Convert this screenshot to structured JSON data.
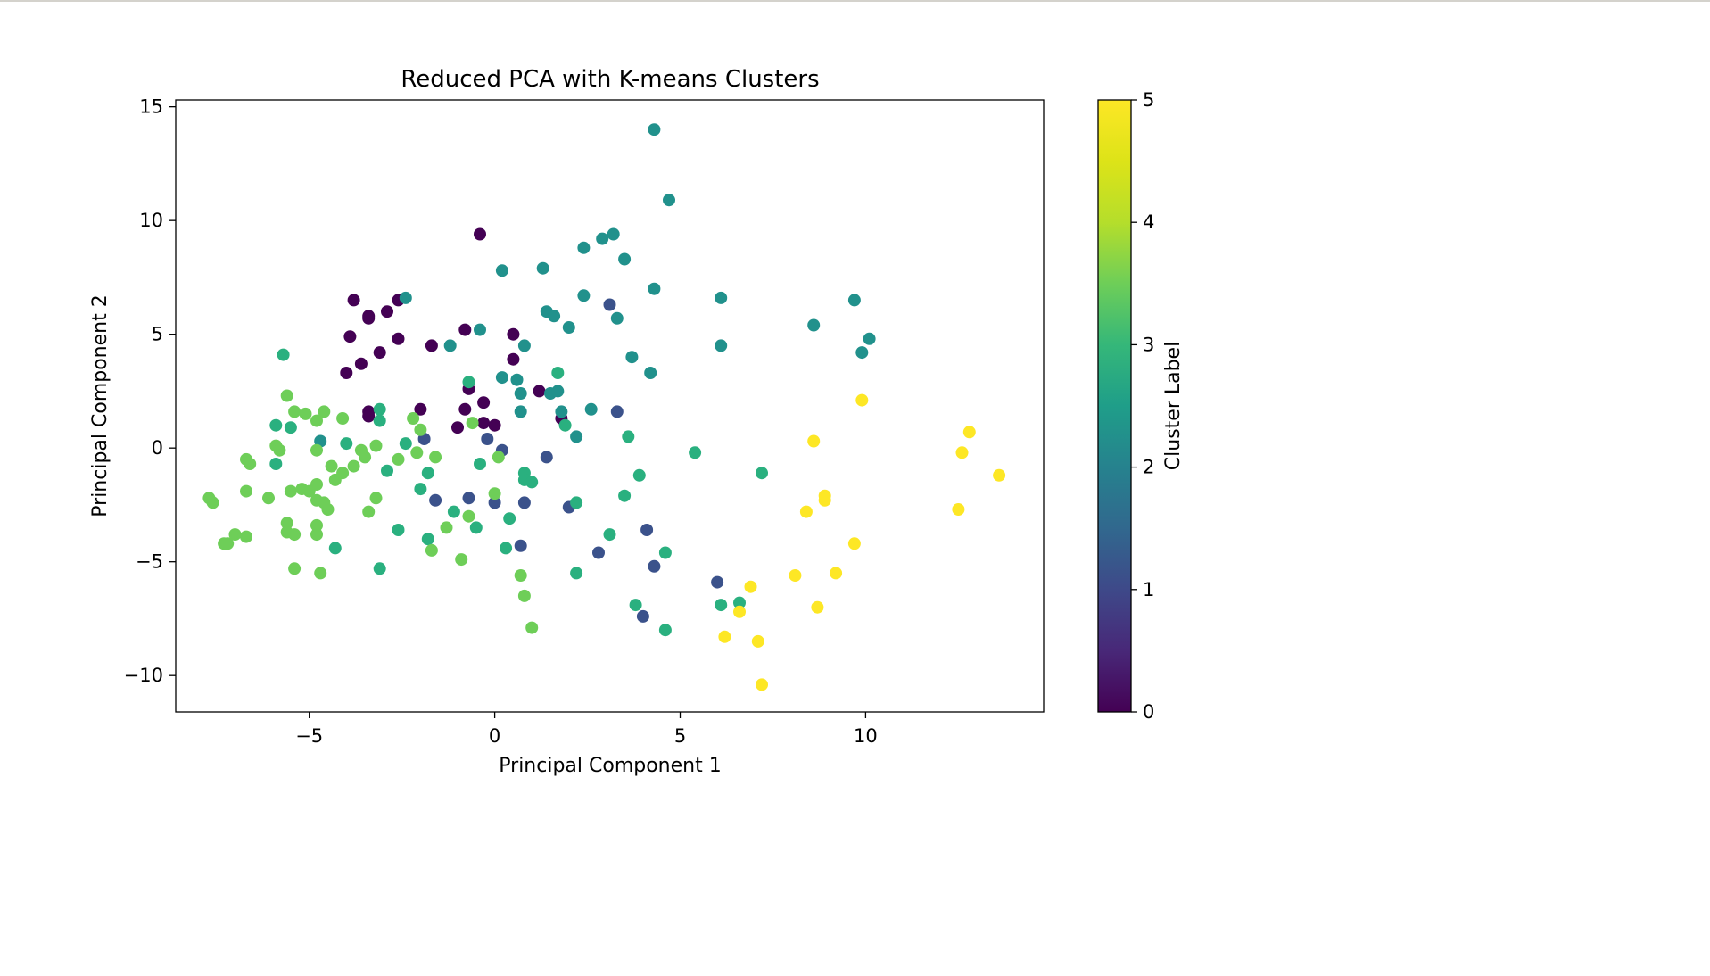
{
  "chart_data": {
    "type": "scatter",
    "title": "Reduced PCA with K-means Clusters",
    "xlabel": "Principal Component 1",
    "ylabel": "Principal Component 2",
    "xlim": [
      -8.6,
      14.8
    ],
    "ylim": [
      -11.6,
      15.3
    ],
    "xticks": [
      -5,
      0,
      5,
      10
    ],
    "yticks": [
      -10,
      -5,
      0,
      5,
      10,
      15
    ],
    "colorbar": {
      "label": "Cluster Label",
      "ticks": [
        0,
        1,
        2,
        3,
        4,
        5
      ],
      "range": [
        0,
        5
      ],
      "colormap": "viridis"
    },
    "grid": false,
    "colors": {
      "0": "#440154",
      "1": "#3b528b",
      "2": "#21918c",
      "3": "#2ab07f",
      "4": "#6ece58",
      "5": "#fde725"
    },
    "points": [
      {
        "x": -0.4,
        "y": 9.4,
        "c": 0
      },
      {
        "x": -3.8,
        "y": 6.5,
        "c": 0
      },
      {
        "x": -2.9,
        "y": 6.0,
        "c": 0
      },
      {
        "x": -3.4,
        "y": 5.8,
        "c": 0
      },
      {
        "x": -3.4,
        "y": 5.7,
        "c": 0
      },
      {
        "x": -2.6,
        "y": 6.5,
        "c": 0
      },
      {
        "x": -3.9,
        "y": 4.9,
        "c": 0
      },
      {
        "x": -2.6,
        "y": 4.8,
        "c": 0
      },
      {
        "x": -1.7,
        "y": 4.5,
        "c": 0
      },
      {
        "x": -0.8,
        "y": 5.2,
        "c": 0
      },
      {
        "x": 0.5,
        "y": 5.0,
        "c": 0
      },
      {
        "x": -3.1,
        "y": 4.2,
        "c": 0
      },
      {
        "x": -3.6,
        "y": 3.7,
        "c": 0
      },
      {
        "x": -4.0,
        "y": 3.3,
        "c": 0
      },
      {
        "x": 0.5,
        "y": 3.9,
        "c": 0
      },
      {
        "x": -0.7,
        "y": 2.6,
        "c": 0
      },
      {
        "x": -0.3,
        "y": 2.0,
        "c": 0
      },
      {
        "x": 1.2,
        "y": 2.5,
        "c": 0
      },
      {
        "x": -0.8,
        "y": 1.7,
        "c": 0
      },
      {
        "x": -2.0,
        "y": 1.7,
        "c": 0
      },
      {
        "x": -3.4,
        "y": 1.6,
        "c": 0
      },
      {
        "x": -3.4,
        "y": 1.4,
        "c": 0
      },
      {
        "x": 1.8,
        "y": 1.3,
        "c": 0
      },
      {
        "x": -0.3,
        "y": 1.1,
        "c": 0
      },
      {
        "x": 0.0,
        "y": 1.0,
        "c": 0
      },
      {
        "x": -1.0,
        "y": 0.9,
        "c": 0
      },
      {
        "x": 3.1,
        "y": 6.3,
        "c": 1
      },
      {
        "x": 3.3,
        "y": 1.6,
        "c": 1
      },
      {
        "x": -1.9,
        "y": 0.4,
        "c": 1
      },
      {
        "x": -0.2,
        "y": 0.4,
        "c": 1
      },
      {
        "x": 0.2,
        "y": -0.1,
        "c": 1
      },
      {
        "x": 1.4,
        "y": -0.4,
        "c": 1
      },
      {
        "x": -1.6,
        "y": -2.3,
        "c": 1
      },
      {
        "x": -0.7,
        "y": -2.2,
        "c": 1
      },
      {
        "x": 0.0,
        "y": -2.4,
        "c": 1
      },
      {
        "x": 0.8,
        "y": -2.4,
        "c": 1
      },
      {
        "x": 2.0,
        "y": -2.6,
        "c": 1
      },
      {
        "x": 4.1,
        "y": -3.6,
        "c": 1
      },
      {
        "x": 0.7,
        "y": -4.3,
        "c": 1
      },
      {
        "x": 2.8,
        "y": -4.6,
        "c": 1
      },
      {
        "x": 4.3,
        "y": -5.2,
        "c": 1
      },
      {
        "x": 6.0,
        "y": -5.9,
        "c": 1
      },
      {
        "x": 4.0,
        "y": -7.4,
        "c": 1
      },
      {
        "x": 4.3,
        "y": 14.0,
        "c": 2
      },
      {
        "x": 4.7,
        "y": 10.9,
        "c": 2
      },
      {
        "x": 3.2,
        "y": 9.4,
        "c": 2
      },
      {
        "x": 2.9,
        "y": 9.2,
        "c": 2
      },
      {
        "x": 2.4,
        "y": 8.8,
        "c": 2
      },
      {
        "x": 3.5,
        "y": 8.3,
        "c": 2
      },
      {
        "x": 0.2,
        "y": 7.8,
        "c": 2
      },
      {
        "x": 1.3,
        "y": 7.9,
        "c": 2
      },
      {
        "x": 4.3,
        "y": 7.0,
        "c": 2
      },
      {
        "x": 2.4,
        "y": 6.7,
        "c": 2
      },
      {
        "x": 6.1,
        "y": 6.6,
        "c": 2
      },
      {
        "x": 9.7,
        "y": 6.5,
        "c": 2
      },
      {
        "x": -2.4,
        "y": 6.6,
        "c": 2
      },
      {
        "x": 1.4,
        "y": 6.0,
        "c": 2
      },
      {
        "x": 1.6,
        "y": 5.8,
        "c": 2
      },
      {
        "x": 3.3,
        "y": 5.7,
        "c": 2
      },
      {
        "x": 8.6,
        "y": 5.4,
        "c": 2
      },
      {
        "x": 2.0,
        "y": 5.3,
        "c": 2
      },
      {
        "x": -0.4,
        "y": 5.2,
        "c": 2
      },
      {
        "x": 10.1,
        "y": 4.8,
        "c": 2
      },
      {
        "x": -1.2,
        "y": 4.5,
        "c": 2
      },
      {
        "x": 0.8,
        "y": 4.5,
        "c": 2
      },
      {
        "x": 6.1,
        "y": 4.5,
        "c": 2
      },
      {
        "x": 3.7,
        "y": 4.0,
        "c": 2
      },
      {
        "x": 9.9,
        "y": 4.2,
        "c": 2
      },
      {
        "x": 4.2,
        "y": 3.3,
        "c": 2
      },
      {
        "x": 0.2,
        "y": 3.1,
        "c": 2
      },
      {
        "x": 0.6,
        "y": 3.0,
        "c": 2
      },
      {
        "x": 0.7,
        "y": 2.4,
        "c": 2
      },
      {
        "x": 1.5,
        "y": 2.4,
        "c": 2
      },
      {
        "x": 1.7,
        "y": 2.5,
        "c": 2
      },
      {
        "x": 2.6,
        "y": 1.7,
        "c": 2
      },
      {
        "x": 1.8,
        "y": 1.6,
        "c": 2
      },
      {
        "x": 0.7,
        "y": 1.6,
        "c": 2
      },
      {
        "x": 2.2,
        "y": 0.5,
        "c": 2
      },
      {
        "x": -4.7,
        "y": 0.3,
        "c": 2
      },
      {
        "x": -5.7,
        "y": 4.1,
        "c": 3
      },
      {
        "x": 1.7,
        "y": 3.3,
        "c": 3
      },
      {
        "x": -0.7,
        "y": 2.9,
        "c": 3
      },
      {
        "x": -3.1,
        "y": 1.7,
        "c": 3
      },
      {
        "x": -3.1,
        "y": 1.2,
        "c": 3
      },
      {
        "x": -5.9,
        "y": 1.0,
        "c": 3
      },
      {
        "x": -5.5,
        "y": 0.9,
        "c": 3
      },
      {
        "x": 1.9,
        "y": 1.0,
        "c": 3
      },
      {
        "x": 3.6,
        "y": 0.5,
        "c": 3
      },
      {
        "x": -4.0,
        "y": 0.2,
        "c": 3
      },
      {
        "x": -2.4,
        "y": 0.2,
        "c": 3
      },
      {
        "x": 5.4,
        "y": -0.2,
        "c": 3
      },
      {
        "x": -5.9,
        "y": -0.7,
        "c": 3
      },
      {
        "x": -0.4,
        "y": -0.7,
        "c": 3
      },
      {
        "x": 7.2,
        "y": -1.1,
        "c": 3
      },
      {
        "x": -2.9,
        "y": -1.0,
        "c": 3
      },
      {
        "x": -1.8,
        "y": -1.1,
        "c": 3
      },
      {
        "x": 0.8,
        "y": -1.1,
        "c": 3
      },
      {
        "x": 0.8,
        "y": -1.4,
        "c": 3
      },
      {
        "x": 1.0,
        "y": -1.5,
        "c": 3
      },
      {
        "x": 3.9,
        "y": -1.2,
        "c": 3
      },
      {
        "x": -2.0,
        "y": -1.8,
        "c": 3
      },
      {
        "x": 3.5,
        "y": -2.1,
        "c": 3
      },
      {
        "x": 2.2,
        "y": -2.4,
        "c": 3
      },
      {
        "x": -1.1,
        "y": -2.8,
        "c": 3
      },
      {
        "x": 0.4,
        "y": -3.1,
        "c": 3
      },
      {
        "x": -2.6,
        "y": -3.6,
        "c": 3
      },
      {
        "x": -0.5,
        "y": -3.5,
        "c": 3
      },
      {
        "x": 3.1,
        "y": -3.8,
        "c": 3
      },
      {
        "x": -1.8,
        "y": -4.0,
        "c": 3
      },
      {
        "x": -4.3,
        "y": -4.4,
        "c": 3
      },
      {
        "x": 0.3,
        "y": -4.4,
        "c": 3
      },
      {
        "x": 4.6,
        "y": -4.6,
        "c": 3
      },
      {
        "x": -3.1,
        "y": -5.3,
        "c": 3
      },
      {
        "x": 2.2,
        "y": -5.5,
        "c": 3
      },
      {
        "x": 3.8,
        "y": -6.9,
        "c": 3
      },
      {
        "x": 6.1,
        "y": -6.9,
        "c": 3
      },
      {
        "x": 6.6,
        "y": -6.8,
        "c": 3
      },
      {
        "x": 4.6,
        "y": -8.0,
        "c": 3
      },
      {
        "x": -5.6,
        "y": 2.3,
        "c": 4
      },
      {
        "x": -5.4,
        "y": 1.6,
        "c": 4
      },
      {
        "x": -5.1,
        "y": 1.5,
        "c": 4
      },
      {
        "x": -4.8,
        "y": 1.2,
        "c": 4
      },
      {
        "x": -4.6,
        "y": 1.6,
        "c": 4
      },
      {
        "x": -4.1,
        "y": 1.3,
        "c": 4
      },
      {
        "x": -2.2,
        "y": 1.3,
        "c": 4
      },
      {
        "x": -0.6,
        "y": 1.1,
        "c": 4
      },
      {
        "x": -2.0,
        "y": 0.8,
        "c": 4
      },
      {
        "x": -5.9,
        "y": 0.1,
        "c": 4
      },
      {
        "x": -5.8,
        "y": -0.1,
        "c": 4
      },
      {
        "x": -4.8,
        "y": -0.1,
        "c": 4
      },
      {
        "x": -3.6,
        "y": -0.1,
        "c": 4
      },
      {
        "x": -3.2,
        "y": 0.1,
        "c": 4
      },
      {
        "x": -3.5,
        "y": -0.4,
        "c": 4
      },
      {
        "x": -2.1,
        "y": -0.2,
        "c": 4
      },
      {
        "x": -2.6,
        "y": -0.5,
        "c": 4
      },
      {
        "x": -1.6,
        "y": -0.4,
        "c": 4
      },
      {
        "x": 0.1,
        "y": -0.4,
        "c": 4
      },
      {
        "x": -6.7,
        "y": -0.5,
        "c": 4
      },
      {
        "x": -6.6,
        "y": -0.7,
        "c": 4
      },
      {
        "x": -4.4,
        "y": -0.8,
        "c": 4
      },
      {
        "x": -3.8,
        "y": -0.8,
        "c": 4
      },
      {
        "x": -4.1,
        "y": -1.1,
        "c": 4
      },
      {
        "x": -4.3,
        "y": -1.4,
        "c": 4
      },
      {
        "x": -4.8,
        "y": -1.6,
        "c": 4
      },
      {
        "x": -5.2,
        "y": -1.8,
        "c": 4
      },
      {
        "x": -5.0,
        "y": -1.9,
        "c": 4
      },
      {
        "x": -5.5,
        "y": -1.9,
        "c": 4
      },
      {
        "x": -6.7,
        "y": -1.9,
        "c": 4
      },
      {
        "x": -6.1,
        "y": -2.2,
        "c": 4
      },
      {
        "x": -7.7,
        "y": -2.2,
        "c": 4
      },
      {
        "x": -7.6,
        "y": -2.4,
        "c": 4
      },
      {
        "x": -4.8,
        "y": -2.3,
        "c": 4
      },
      {
        "x": -4.6,
        "y": -2.4,
        "c": 4
      },
      {
        "x": -4.5,
        "y": -2.7,
        "c": 4
      },
      {
        "x": -3.2,
        "y": -2.2,
        "c": 4
      },
      {
        "x": -3.4,
        "y": -2.8,
        "c": 4
      },
      {
        "x": 0.0,
        "y": -2.0,
        "c": 4
      },
      {
        "x": -0.7,
        "y": -3.0,
        "c": 4
      },
      {
        "x": -5.6,
        "y": -3.3,
        "c": 4
      },
      {
        "x": -4.8,
        "y": -3.4,
        "c": 4
      },
      {
        "x": -1.3,
        "y": -3.5,
        "c": 4
      },
      {
        "x": -5.6,
        "y": -3.7,
        "c": 4
      },
      {
        "x": -5.4,
        "y": -3.8,
        "c": 4
      },
      {
        "x": -4.8,
        "y": -3.8,
        "c": 4
      },
      {
        "x": -7.0,
        "y": -3.8,
        "c": 4
      },
      {
        "x": -6.7,
        "y": -3.9,
        "c": 4
      },
      {
        "x": -7.3,
        "y": -4.2,
        "c": 4
      },
      {
        "x": -7.2,
        "y": -4.2,
        "c": 4
      },
      {
        "x": -1.7,
        "y": -4.5,
        "c": 4
      },
      {
        "x": -0.9,
        "y": -4.9,
        "c": 4
      },
      {
        "x": -5.4,
        "y": -5.3,
        "c": 4
      },
      {
        "x": -4.7,
        "y": -5.5,
        "c": 4
      },
      {
        "x": 0.7,
        "y": -5.6,
        "c": 4
      },
      {
        "x": 0.8,
        "y": -6.5,
        "c": 4
      },
      {
        "x": 1.0,
        "y": -7.9,
        "c": 4
      },
      {
        "x": 9.9,
        "y": 2.1,
        "c": 5
      },
      {
        "x": 12.8,
        "y": 0.7,
        "c": 5
      },
      {
        "x": 8.6,
        "y": 0.3,
        "c": 5
      },
      {
        "x": 12.6,
        "y": -0.2,
        "c": 5
      },
      {
        "x": 13.6,
        "y": -1.2,
        "c": 5
      },
      {
        "x": 8.9,
        "y": -2.1,
        "c": 5
      },
      {
        "x": 8.9,
        "y": -2.3,
        "c": 5
      },
      {
        "x": 8.4,
        "y": -2.8,
        "c": 5
      },
      {
        "x": 12.5,
        "y": -2.7,
        "c": 5
      },
      {
        "x": 9.7,
        "y": -4.2,
        "c": 5
      },
      {
        "x": 9.2,
        "y": -5.5,
        "c": 5
      },
      {
        "x": 8.1,
        "y": -5.6,
        "c": 5
      },
      {
        "x": 6.9,
        "y": -6.1,
        "c": 5
      },
      {
        "x": 8.7,
        "y": -7.0,
        "c": 5
      },
      {
        "x": 6.6,
        "y": -7.2,
        "c": 5
      },
      {
        "x": 6.2,
        "y": -8.3,
        "c": 5
      },
      {
        "x": 7.1,
        "y": -8.5,
        "c": 5
      },
      {
        "x": 7.2,
        "y": -10.4,
        "c": 5
      }
    ]
  }
}
